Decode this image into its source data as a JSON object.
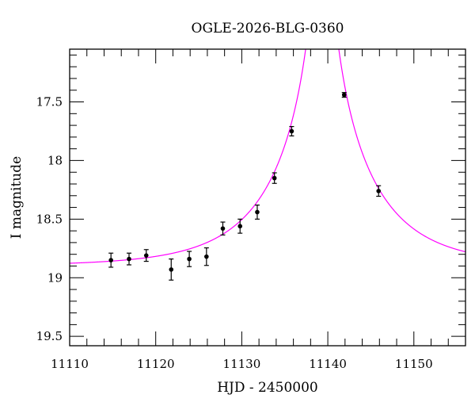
{
  "chart_data": {
    "type": "scatter",
    "title": "OGLE-2026-BLG-0360",
    "xlabel": "HJD - 2450000",
    "ylabel": "I magnitude",
    "xlim": [
      11110,
      11156
    ],
    "ylim": [
      17.05,
      19.58
    ],
    "y_inverted": true,
    "grid": false,
    "xticks": [
      11110,
      11120,
      11130,
      11140,
      11150
    ],
    "xtick_labels": [
      "11110",
      "11120",
      "11130",
      "11140",
      "11150"
    ],
    "yticks": [
      17.5,
      18,
      18.5,
      19,
      19.5
    ],
    "ytick_labels": [
      "17.5",
      "18",
      "18.5",
      "19",
      "19.5"
    ],
    "series": [
      {
        "type": "errorbar",
        "color": "#000000",
        "x": [
          11114.8,
          11116.9,
          11118.9,
          11121.8,
          11123.9,
          11125.9,
          11127.8,
          11129.8,
          11131.8,
          11133.8,
          11135.8,
          11141.9,
          11145.9
        ],
        "y": [
          18.85,
          18.84,
          18.81,
          18.93,
          18.84,
          18.82,
          18.58,
          18.56,
          18.44,
          18.15,
          17.75,
          17.44,
          18.26
        ],
        "err": [
          0.06,
          0.05,
          0.05,
          0.09,
          0.065,
          0.075,
          0.055,
          0.06,
          0.06,
          0.045,
          0.04,
          0.02,
          0.045
        ]
      },
      {
        "type": "line",
        "color": "#ff00ff"
      }
    ]
  }
}
